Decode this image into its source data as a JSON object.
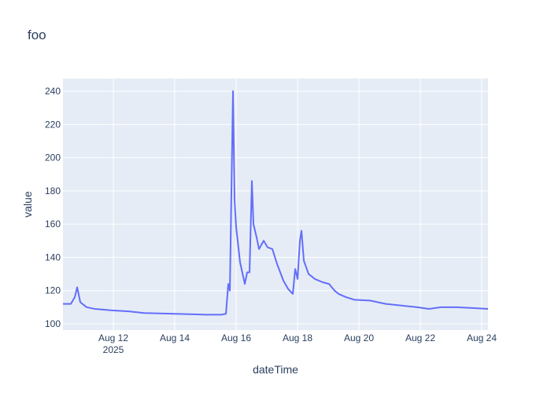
{
  "chart_data": {
    "type": "line",
    "title": "foo",
    "x_label": "dateTime",
    "y_label": "value",
    "x": [
      "2025-08-10 08:36",
      "2025-08-10 14:45",
      "2025-08-10 17:50",
      "2025-08-10 19:42",
      "2025-08-10 22:09",
      "2025-08-11 03:04",
      "2025-08-11 09:14",
      "2025-08-12 00:00",
      "2025-08-12 12:00",
      "2025-08-13 00:00",
      "2025-08-14 00:00",
      "2025-08-15 00:00",
      "2025-08-15 12:19",
      "2025-08-15 16:00",
      "2025-08-15 17:51",
      "2025-08-15 19:05",
      "2025-08-15 21:32",
      "2025-08-15 22:46",
      "2025-08-16 00:00",
      "2025-08-16 03:04",
      "2025-08-16 06:46",
      "2025-08-16 08:37",
      "2025-08-16 10:28",
      "2025-08-16 12:18",
      "2025-08-16 13:32",
      "2025-08-16 16:00",
      "2025-08-16 17:51",
      "2025-08-16 21:32",
      "2025-08-17 00:37",
      "2025-08-17 04:18",
      "2025-08-17 08:00",
      "2025-08-17 12:55",
      "2025-08-17 16:37",
      "2025-08-17 20:18",
      "2025-08-17 22:09",
      "2025-08-18 00:00",
      "2025-08-18 01:51",
      "2025-08-18 03:04",
      "2025-08-18 04:55",
      "2025-08-18 08:37",
      "2025-08-18 13:32",
      "2025-08-18 19:42",
      "2025-08-19 00:37",
      "2025-08-19 04:55",
      "2025-08-19 08:00",
      "2025-08-19 14:09",
      "2025-08-19 20:18",
      "2025-08-20 08:37",
      "2025-08-20 20:55",
      "2025-08-21 09:14",
      "2025-08-21 21:32",
      "2025-08-22 06:46",
      "2025-08-22 16:00",
      "2025-08-23 04:18",
      "2025-08-23 16:37",
      "2025-08-24 04:55"
    ],
    "series": [
      {
        "color": "#636efa",
        "values": [
          112,
          112,
          116,
          122,
          113,
          110,
          109,
          108,
          107.5,
          106.5,
          106,
          105.5,
          105.5,
          106,
          124,
          120,
          240,
          175,
          158,
          137,
          124,
          131,
          131,
          186,
          160,
          152,
          145,
          150,
          146,
          145,
          136,
          126,
          121,
          118,
          133,
          127,
          150,
          156,
          138,
          130,
          127,
          125,
          124,
          120,
          118,
          116,
          114.5,
          114,
          112,
          111,
          110,
          109,
          110,
          110,
          109.5,
          109
        ]
      }
    ],
    "xlim": [
      "2025-08-10 08:36",
      "2025-08-24 04:55"
    ],
    "xticks": [
      {
        "value": "2025-08-12",
        "label": "Aug 12"
      },
      {
        "value": "2025-08-14",
        "label": "Aug 14"
      },
      {
        "value": "2025-08-16",
        "label": "Aug 16"
      },
      {
        "value": "2025-08-18",
        "label": "Aug 18"
      },
      {
        "value": "2025-08-20",
        "label": "Aug 20"
      },
      {
        "value": "2025-08-22",
        "label": "Aug 22"
      },
      {
        "value": "2025-08-24",
        "label": "Aug 24"
      }
    ],
    "x_year_label": "2025",
    "ylim": [
      96.2,
      247.6
    ],
    "yticks": [
      100,
      120,
      140,
      160,
      180,
      200,
      220,
      240
    ],
    "grid": true
  }
}
